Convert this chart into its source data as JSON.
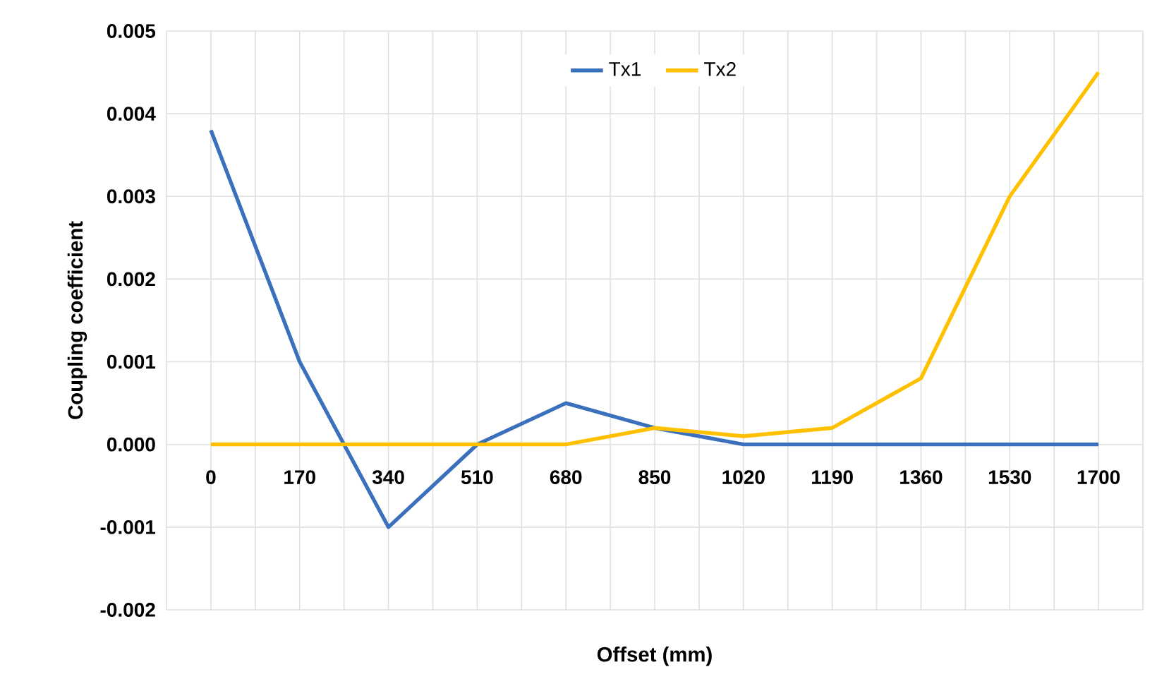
{
  "chart_data": {
    "type": "line",
    "xlabel": "Offset (mm)",
    "ylabel": "Coupling coefficient",
    "categories": [
      "0",
      "170",
      "340",
      "510",
      "680",
      "850",
      "1020",
      "1190",
      "1360",
      "1530",
      "1700"
    ],
    "series": [
      {
        "name": "Tx1",
        "color": "#3b70bd",
        "values": [
          0.0038,
          0.001,
          -0.001,
          0,
          0.0005,
          0.0002,
          0,
          0,
          0,
          0,
          0
        ]
      },
      {
        "name": "Tx2",
        "color": "#ffc000",
        "values": [
          0,
          0,
          0,
          0,
          0,
          0.0002,
          0.0001,
          0.0002,
          0.0008,
          0.003,
          0.0045
        ]
      }
    ],
    "ylim": [
      -0.002,
      0.005
    ],
    "yticks": [
      {
        "value": -0.002,
        "label": "-0.002"
      },
      {
        "value": -0.001,
        "label": "-0.001"
      },
      {
        "value": 0,
        "label": "0.000"
      },
      {
        "value": 0.001,
        "label": "0.001"
      },
      {
        "value": 0.002,
        "label": "0.002"
      },
      {
        "value": 0.003,
        "label": "0.003"
      },
      {
        "value": 0.004,
        "label": "0.004"
      },
      {
        "value": 0.005,
        "label": "0.005"
      }
    ],
    "grid": true,
    "legend": "top",
    "line_style": "solid",
    "marker": "none"
  }
}
